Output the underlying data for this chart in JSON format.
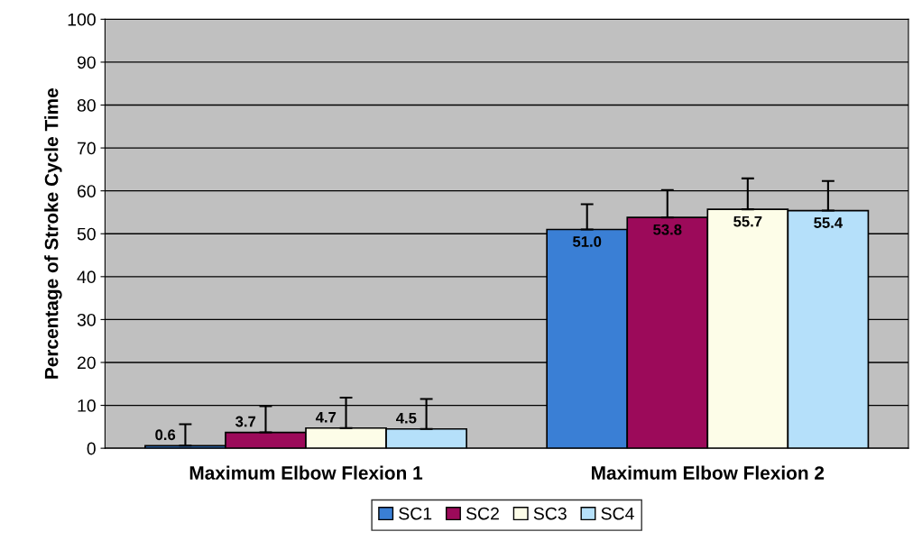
{
  "chart_data": {
    "type": "bar",
    "ylabel": "Percentage of Stroke Cycle Time",
    "categories": [
      "Maximum Elbow Flexion 1",
      "Maximum Elbow Flexion 2"
    ],
    "series": [
      {
        "name": "SC1",
        "color": "#3a7fd5",
        "values": [
          0.6,
          51.0
        ],
        "value_labels": [
          "0.6",
          "51.0"
        ],
        "errors": [
          5.0,
          5.9
        ]
      },
      {
        "name": "SC2",
        "color": "#9c0a5a",
        "values": [
          3.7,
          53.8
        ],
        "value_labels": [
          "3.7",
          "53.8"
        ],
        "errors": [
          6.1,
          6.4
        ]
      },
      {
        "name": "SC3",
        "color": "#fdfde8",
        "values": [
          4.7,
          55.7
        ],
        "value_labels": [
          "4.7",
          "55.7"
        ],
        "errors": [
          7.1,
          7.2
        ]
      },
      {
        "name": "SC4",
        "color": "#b5e0fa",
        "values": [
          4.5,
          55.4
        ],
        "value_labels": [
          "4.5",
          "55.4"
        ],
        "errors": [
          7.0,
          6.9
        ]
      }
    ],
    "ylim": [
      0,
      100
    ],
    "yticks": [
      0,
      10,
      20,
      30,
      40,
      50,
      60,
      70,
      80,
      90,
      100
    ],
    "grid": "y",
    "legend": "bottom"
  }
}
